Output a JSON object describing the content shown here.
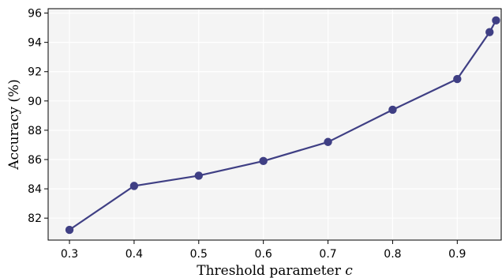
{
  "chart_data": {
    "type": "line",
    "xlabel": "Threshold parameter",
    "xlabel_var": "c",
    "ylabel": "Accuracy (%)",
    "x": [
      0.3,
      0.4,
      0.5,
      0.6,
      0.7,
      0.8,
      0.9,
      0.95,
      0.96
    ],
    "series": [
      {
        "values": [
          81.2,
          84.2,
          84.9,
          85.9,
          87.2,
          89.4,
          91.5,
          94.7,
          95.5
        ]
      }
    ],
    "xticks": [
      0.3,
      0.4,
      0.5,
      0.6,
      0.7,
      0.8,
      0.9
    ],
    "xtick_labels": [
      "0.3",
      "0.4",
      "0.5",
      "0.6",
      "0.7",
      "0.8",
      "0.9"
    ],
    "yticks": [
      82,
      84,
      86,
      88,
      90,
      92,
      94,
      96
    ],
    "ytick_labels": [
      "82",
      "84",
      "86",
      "88",
      "90",
      "92",
      "94",
      "96"
    ],
    "xlim": [
      0.267,
      0.968
    ],
    "ylim": [
      80.5,
      96.3
    ],
    "grid": true,
    "colors": {
      "line": "#3f3f84",
      "plot_bg": "#f4f4f4",
      "grid": "#ffffff"
    }
  }
}
